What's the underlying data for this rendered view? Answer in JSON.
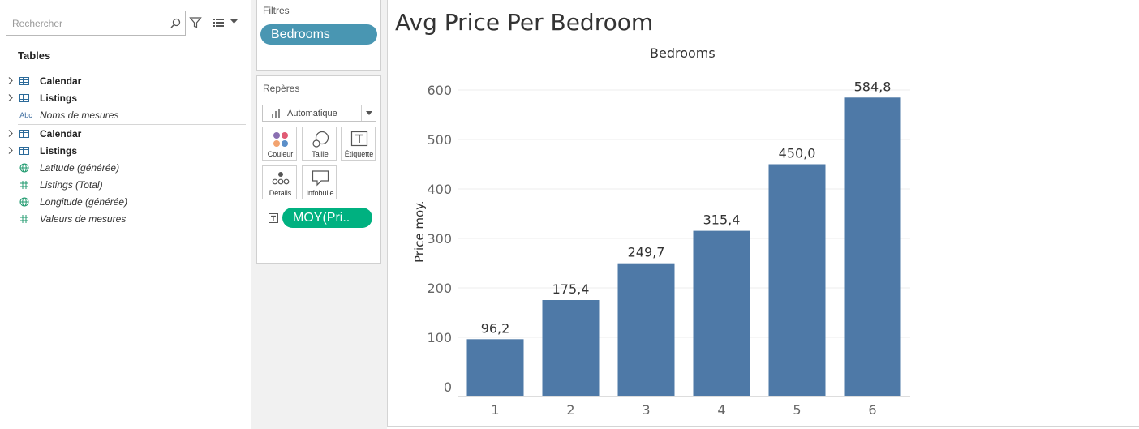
{
  "data_pane": {
    "search": {
      "placeholder": "Rechercher"
    },
    "tables_title": "Tables",
    "fields": [
      {
        "label": "Calendar",
        "icon": "table-icon",
        "expand": true,
        "style": "bold"
      },
      {
        "label": "Listings",
        "icon": "table-icon",
        "expand": true,
        "style": "bold"
      },
      {
        "label": "Noms de mesures",
        "icon_text": "Abc",
        "icon": "abc-icon",
        "expand": false,
        "style": "italic"
      },
      {
        "label": "Calendar",
        "icon": "table-icon",
        "expand": true,
        "style": "bold"
      },
      {
        "label": "Listings",
        "icon": "table-icon",
        "expand": true,
        "style": "bold"
      },
      {
        "label": "Latitude (générée)",
        "icon": "globe-icon",
        "expand": false,
        "style": "italic"
      },
      {
        "label": "Listings (Total)",
        "icon": "hash-icon",
        "expand": false,
        "style": "italic"
      },
      {
        "label": "Longitude (générée)",
        "icon": "globe-icon",
        "expand": false,
        "style": "italic"
      },
      {
        "label": "Valeurs de mesures",
        "icon": "hash-icon",
        "expand": false,
        "style": "italic"
      }
    ]
  },
  "filters": {
    "title": "Filtres",
    "pill": "Bedrooms"
  },
  "marks": {
    "title": "Repères",
    "type": "Automatique",
    "buttons": {
      "color": "Couleur",
      "size": "Taille",
      "label": "Étiquette",
      "detail": "Détails",
      "tooltip": "Infobulle"
    },
    "label_pill": "MOY(Pri.."
  },
  "colors": {
    "bar": "#4e79a7",
    "dim_pill": "#4996b2",
    "measure_pill": "#00b180"
  },
  "sheet": {
    "title": "Avg Price Per Bedroom",
    "x_header": "Bedrooms",
    "y_title": "Price moy."
  },
  "chart_data": {
    "type": "bar",
    "title": "Avg Price Per Bedroom",
    "xlabel": "Bedrooms",
    "ylabel": "Price moy.",
    "categories": [
      "1",
      "2",
      "3",
      "4",
      "5",
      "6"
    ],
    "values": [
      96.2,
      175.4,
      249.7,
      315.4,
      450.0,
      584.8
    ],
    "value_labels": [
      "96,2",
      "175,4",
      "249,7",
      "315,4",
      "450,0",
      "584,8"
    ],
    "yticks": [
      "0",
      "100",
      "200",
      "300",
      "400",
      "500",
      "600"
    ],
    "ylim": [
      0,
      620
    ],
    "grid": true,
    "legend": false
  }
}
